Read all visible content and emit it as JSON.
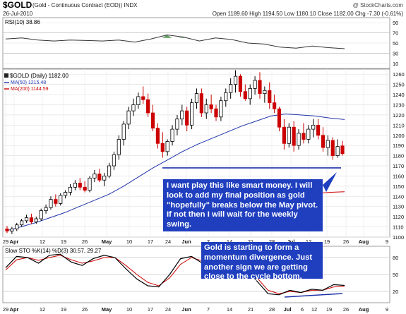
{
  "header": {
    "symbol": "$GOLD",
    "description": "(Gold - Continuous Contract (EOD))  INDX",
    "watermark": "@ StockCharts.com",
    "date": "26-Jul-2010",
    "ohlc": "Open 1189.60  High 1194.50  Low 1180.10  Close 1182.00  Chg -7.30 (-0.61%)"
  },
  "rsi": {
    "label": "RSI(10) 38.86",
    "ticks": [
      "90",
      "70",
      "50",
      "30",
      "10"
    ]
  },
  "price": {
    "label": "$GOLD (Daily) 1182.00",
    "ma50_label": "MA(50) 1215.48",
    "ma200_label": "MA(200) 1144.59",
    "ticks": [
      "1260",
      "1250",
      "1240",
      "1230",
      "1220",
      "1210",
      "1200",
      "1190",
      "1180",
      "1170",
      "1160",
      "1150",
      "1140",
      "1130",
      "1120",
      "1110",
      "1100"
    ],
    "date_ticks": [
      "29",
      "Apr",
      "12",
      "19",
      "26",
      "May",
      "10",
      "17",
      "24",
      "Jun",
      "7",
      "14",
      "21",
      "28",
      "Jul",
      "12",
      "19",
      "26",
      "Aug",
      "9"
    ]
  },
  "sto": {
    "label": "Slow STO %K(14) %D(3) 30.57, 29.27",
    "ticks": [
      "80",
      "50",
      "20"
    ],
    "date_ticks": [
      "29",
      "Apr",
      "12",
      "19",
      "26",
      "May",
      "10",
      "17",
      "24",
      "Jun",
      "7",
      "14",
      "21",
      "28",
      "Jul",
      "6",
      "12",
      "19",
      "26",
      "Aug",
      "9"
    ]
  },
  "annotations": {
    "callout1": "I want play this like smart money. I will look to add my final position as gold \"hopefully\" breaks below the May pivot. If not then I will wait for the weekly swing.",
    "callout2": "Gold is starting to form a momentum divergence. Just another sign we are getting close to the cycle bottom."
  },
  "colors": {
    "up_candle": "#000000",
    "down_candle": "#cc0000",
    "ma50": "#1f33aa",
    "ma200": "#cc0000",
    "callout_bg": "#1f3fbf",
    "rsi_fill": "#2e7d32"
  },
  "chart_data": {
    "type": "candlestick",
    "ylim": [
      1100,
      1265
    ],
    "ohlc": [
      [
        1108,
        1111,
        1104,
        1106
      ],
      [
        1106,
        1110,
        1103,
        1108
      ],
      [
        1108,
        1114,
        1106,
        1112
      ],
      [
        1112,
        1118,
        1110,
        1116
      ],
      [
        1116,
        1122,
        1114,
        1119
      ],
      [
        1119,
        1123,
        1113,
        1115
      ],
      [
        1115,
        1120,
        1113,
        1118
      ],
      [
        1118,
        1128,
        1116,
        1126
      ],
      [
        1126,
        1132,
        1123,
        1129
      ],
      [
        1129,
        1140,
        1127,
        1137
      ],
      [
        1137,
        1142,
        1130,
        1133
      ],
      [
        1133,
        1143,
        1131,
        1141
      ],
      [
        1141,
        1146,
        1138,
        1144
      ],
      [
        1144,
        1152,
        1141,
        1149
      ],
      [
        1149,
        1156,
        1146,
        1153
      ],
      [
        1153,
        1158,
        1146,
        1149
      ],
      [
        1149,
        1155,
        1144,
        1146
      ],
      [
        1146,
        1160,
        1144,
        1158
      ],
      [
        1158,
        1166,
        1154,
        1162
      ],
      [
        1162,
        1167,
        1154,
        1156
      ],
      [
        1156,
        1163,
        1150,
        1160
      ],
      [
        1160,
        1173,
        1158,
        1170
      ],
      [
        1170,
        1184,
        1166,
        1181
      ],
      [
        1181,
        1200,
        1176,
        1196
      ],
      [
        1196,
        1214,
        1190,
        1211
      ],
      [
        1211,
        1228,
        1206,
        1224
      ],
      [
        1224,
        1236,
        1219,
        1230
      ],
      [
        1230,
        1242,
        1226,
        1238
      ],
      [
        1238,
        1248,
        1231,
        1235
      ],
      [
        1235,
        1241,
        1218,
        1222
      ],
      [
        1222,
        1230,
        1204,
        1207
      ],
      [
        1207,
        1212,
        1187,
        1192
      ],
      [
        1192,
        1203,
        1178,
        1184
      ],
      [
        1184,
        1196,
        1180,
        1194
      ],
      [
        1194,
        1210,
        1190,
        1206
      ],
      [
        1206,
        1220,
        1200,
        1216
      ],
      [
        1216,
        1230,
        1210,
        1224
      ],
      [
        1224,
        1228,
        1204,
        1210
      ],
      [
        1210,
        1236,
        1206,
        1232
      ],
      [
        1232,
        1246,
        1226,
        1241
      ],
      [
        1241,
        1246,
        1218,
        1222
      ],
      [
        1222,
        1236,
        1216,
        1230
      ],
      [
        1230,
        1240,
        1222,
        1226
      ],
      [
        1226,
        1230,
        1214,
        1218
      ],
      [
        1218,
        1238,
        1214,
        1234
      ],
      [
        1234,
        1246,
        1228,
        1242
      ],
      [
        1242,
        1256,
        1236,
        1250
      ],
      [
        1250,
        1264,
        1242,
        1258
      ],
      [
        1258,
        1260,
        1238,
        1243
      ],
      [
        1243,
        1250,
        1234,
        1236
      ],
      [
        1236,
        1250,
        1230,
        1246
      ],
      [
        1246,
        1258,
        1240,
        1254
      ],
      [
        1254,
        1262,
        1236,
        1241
      ],
      [
        1241,
        1248,
        1232,
        1244
      ],
      [
        1244,
        1252,
        1226,
        1232
      ],
      [
        1232,
        1240,
        1222,
        1226
      ],
      [
        1226,
        1228,
        1204,
        1208
      ],
      [
        1208,
        1216,
        1186,
        1192
      ],
      [
        1192,
        1212,
        1188,
        1208
      ],
      [
        1208,
        1214,
        1184,
        1190
      ],
      [
        1190,
        1206,
        1186,
        1202
      ],
      [
        1202,
        1212,
        1192,
        1196
      ],
      [
        1196,
        1210,
        1192,
        1206
      ],
      [
        1206,
        1216,
        1198,
        1210
      ],
      [
        1210,
        1216,
        1196,
        1200
      ],
      [
        1200,
        1208,
        1184,
        1188
      ],
      [
        1188,
        1200,
        1180,
        1195
      ],
      [
        1195,
        1198,
        1176,
        1180
      ],
      [
        1180,
        1196,
        1178,
        1189
      ],
      [
        1189.6,
        1194.5,
        1180.1,
        1182
      ]
    ],
    "ma50": [
      1106,
      1110,
      1114,
      1119,
      1124,
      1130,
      1136,
      1142,
      1150,
      1159,
      1168,
      1176,
      1184,
      1191,
      1197,
      1203,
      1209,
      1214,
      1219,
      1221,
      1220,
      1219,
      1217,
      1215.48
    ],
    "ma200": [
      1126,
      1128,
      1130,
      1132,
      1134,
      1136,
      1138,
      1140,
      1141,
      1142,
      1143,
      1144,
      1144.59
    ],
    "support_line": 1168,
    "rsi_values": [
      58,
      60,
      56,
      54,
      56,
      55,
      54,
      56,
      52,
      58,
      66,
      62,
      54,
      60,
      57,
      50,
      48,
      42,
      40,
      44,
      41,
      38.86
    ],
    "sto_k": [
      62,
      82,
      80,
      70,
      84,
      86,
      72,
      66,
      78,
      84,
      80,
      60,
      42,
      30,
      28,
      50,
      78,
      82,
      70,
      74,
      80,
      82,
      60,
      38,
      16,
      14,
      22,
      18,
      24,
      22,
      32,
      30.57
    ],
    "sto_d": [
      58,
      76,
      80,
      75,
      80,
      84,
      76,
      70,
      74,
      80,
      80,
      66,
      50,
      36,
      30,
      44,
      68,
      80,
      74,
      72,
      78,
      80,
      64,
      44,
      22,
      16,
      20,
      18,
      22,
      22,
      28,
      29.27
    ]
  }
}
